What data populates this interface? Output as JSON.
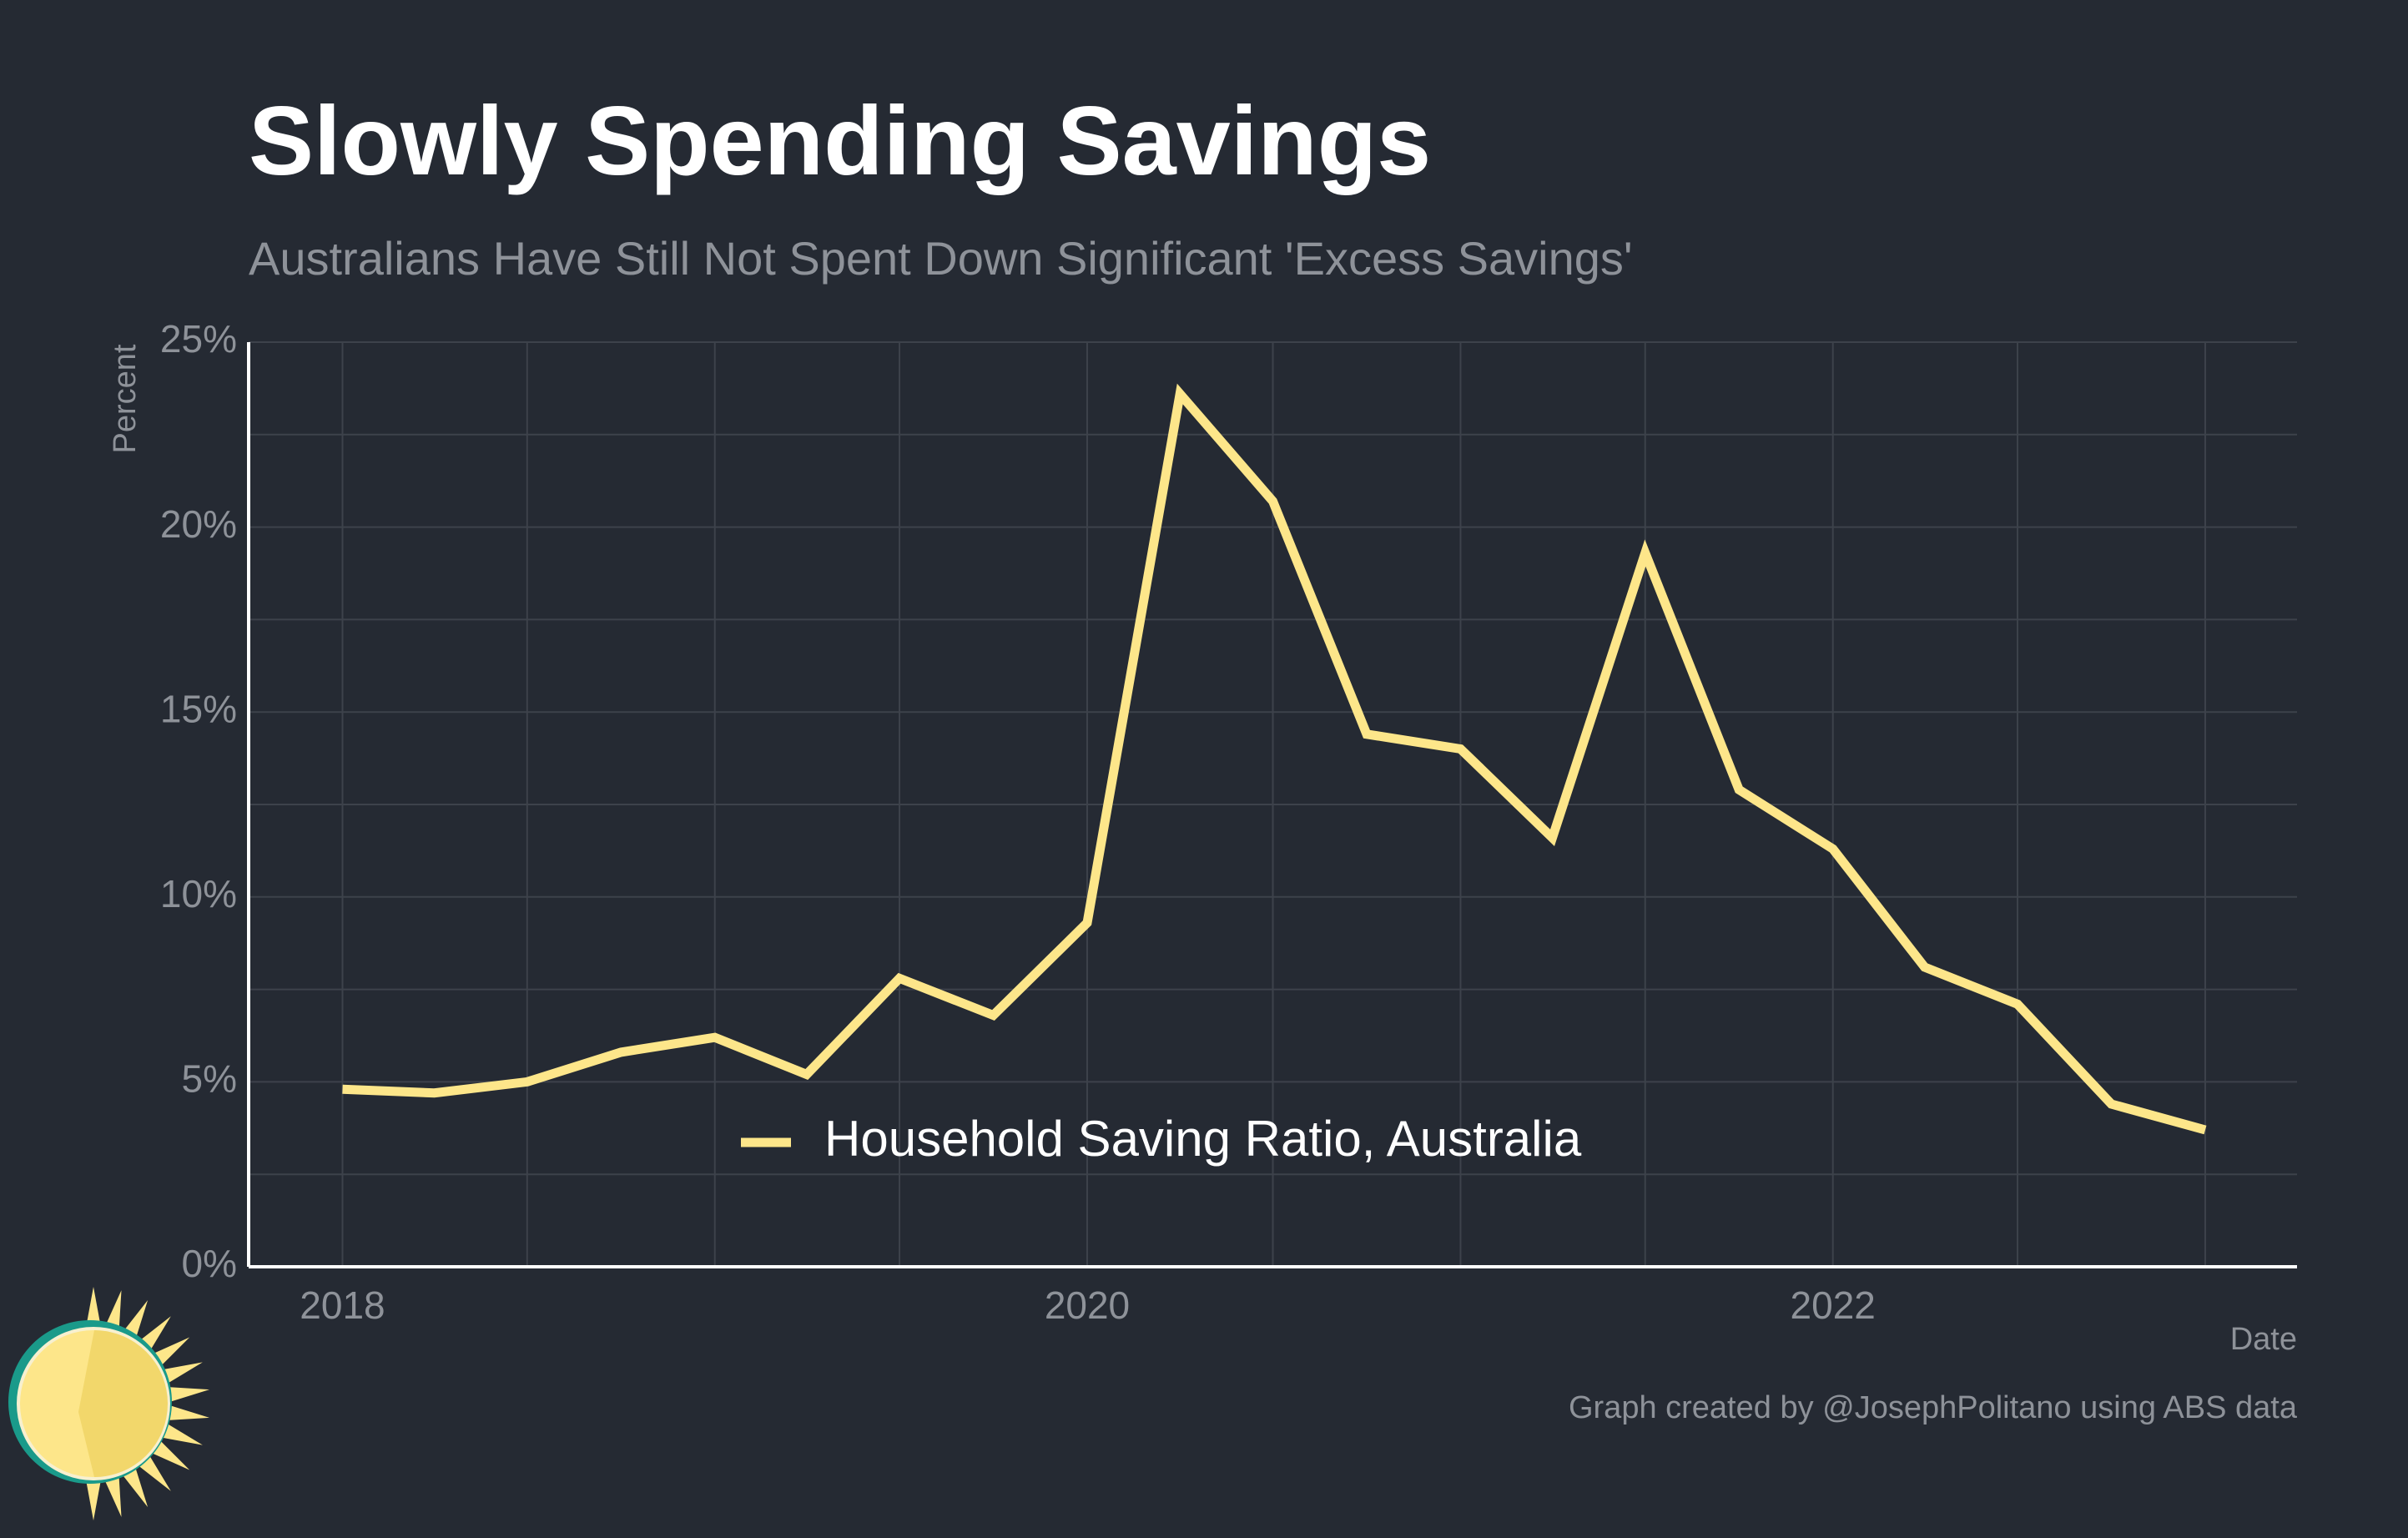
{
  "title": "Slowly Spending Savings",
  "subtitle": "Australians Have Still Not Spent Down Significant 'Excess Savings'",
  "caption": "Graph created by @JosephPolitano using ABS data",
  "colors": {
    "background": "#252a33",
    "series": "#fde68a",
    "grid": "#3d424b",
    "axis": "#ffffff",
    "muted_text": "#8e9299",
    "logo_teal": "#1a9a8a",
    "logo_sun": "#fde68a",
    "logo_sun_dark": "#f2d76b"
  },
  "logo": {
    "icon": "sun-icon"
  },
  "chart_data": {
    "type": "line",
    "title": "Slowly Spending Savings",
    "subtitle": "Australians Have Still Not Spent Down Significant 'Excess Savings'",
    "xlabel": "Date",
    "ylabel": "Percent",
    "x_ticks": [
      "2018",
      "2020",
      "2022"
    ],
    "y_ticks": [
      "0%",
      "5%",
      "10%",
      "15%",
      "20%",
      "25%"
    ],
    "ylim": [
      0,
      25
    ],
    "xlim": [
      "2017-10-01",
      "2023-04-01"
    ],
    "grid": true,
    "legend_position": "bottom-center",
    "series": [
      {
        "name": "Household Saving Ratio, Australia",
        "color": "#fde68a",
        "x": [
          "2018-01-01",
          "2018-04-01",
          "2018-07-01",
          "2018-10-01",
          "2019-01-01",
          "2019-04-01",
          "2019-07-01",
          "2019-10-01",
          "2020-01-01",
          "2020-04-01",
          "2020-07-01",
          "2020-10-01",
          "2021-01-01",
          "2021-04-01",
          "2021-07-01",
          "2021-10-01",
          "2022-01-01",
          "2022-04-01",
          "2022-07-01",
          "2022-10-01",
          "2023-01-01"
        ],
        "values": [
          4.8,
          4.7,
          5.0,
          5.8,
          6.2,
          5.2,
          7.8,
          6.8,
          9.3,
          23.6,
          20.7,
          14.4,
          14.0,
          11.6,
          19.3,
          12.9,
          11.3,
          8.1,
          7.1,
          4.4,
          3.7
        ]
      }
    ]
  }
}
